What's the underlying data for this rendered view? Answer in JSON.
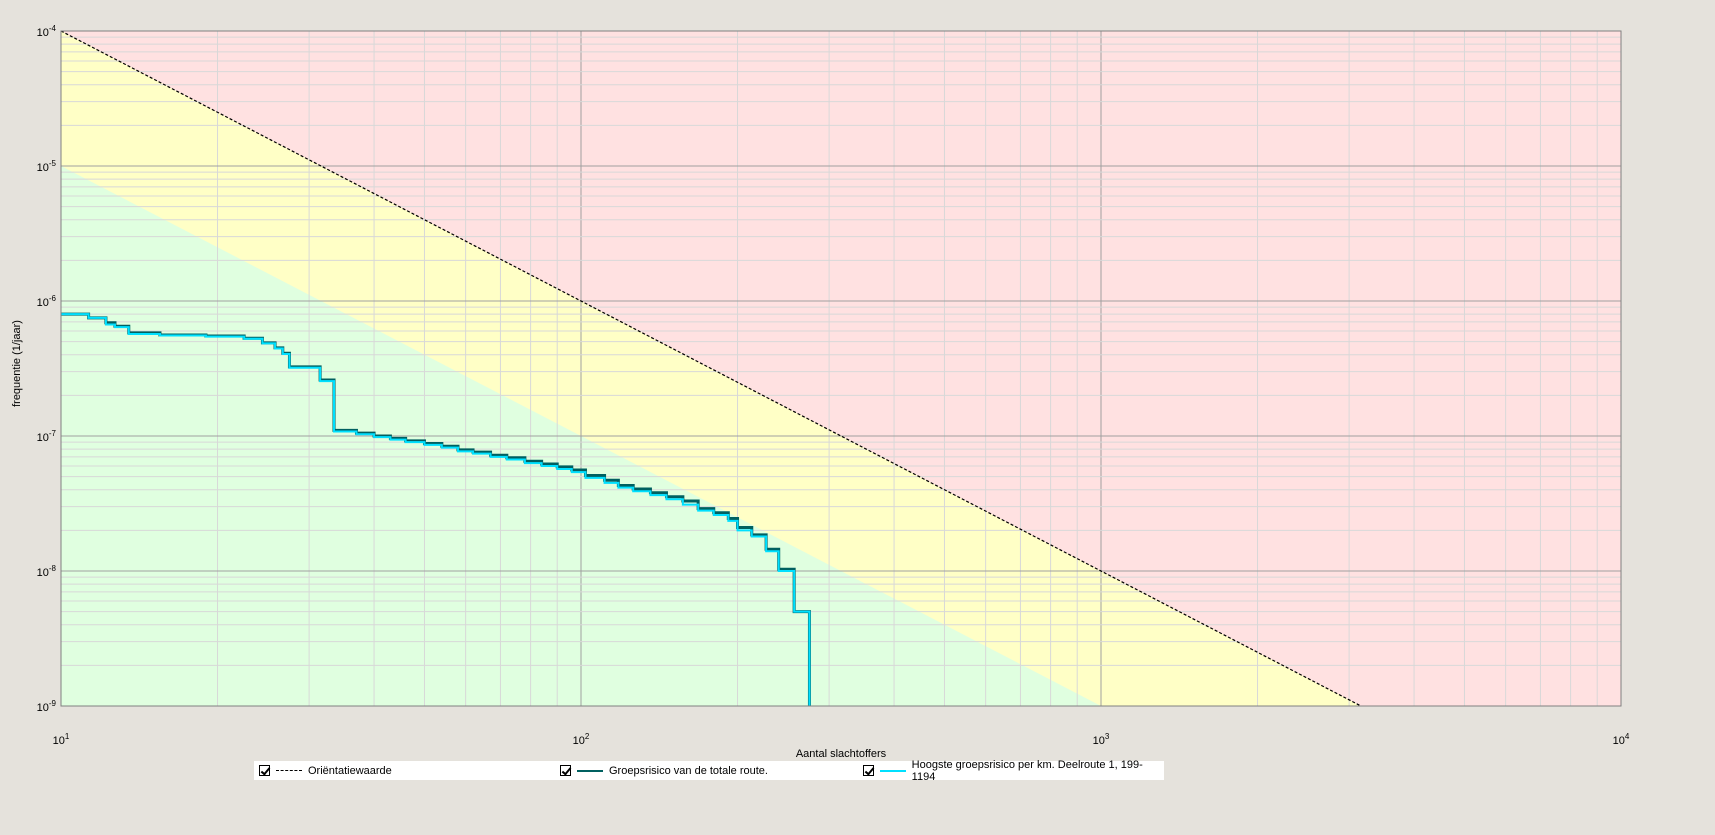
{
  "chart_data": {
    "type": "line",
    "xlabel": "Aantal slachtoffers",
    "ylabel": "frequentie (1/jaar)",
    "xscale": "log",
    "yscale": "log",
    "xlim": [
      10,
      10000
    ],
    "ylim": [
      1e-09,
      0.0001
    ],
    "grid": true,
    "x_ticks": [
      {
        "base": "10",
        "exp": "1",
        "value": 10
      },
      {
        "base": "10",
        "exp": "2",
        "value": 100
      },
      {
        "base": "10",
        "exp": "3",
        "value": 1000
      },
      {
        "base": "10",
        "exp": "4",
        "value": 10000
      }
    ],
    "y_ticks": [
      {
        "base": "10",
        "exp": "-4",
        "value": 0.0001
      },
      {
        "base": "10",
        "exp": "-5",
        "value": 1e-05
      },
      {
        "base": "10",
        "exp": "-6",
        "value": 1e-06
      },
      {
        "base": "10",
        "exp": "-7",
        "value": 1e-07
      },
      {
        "base": "10",
        "exp": "-8",
        "value": 1e-08
      },
      {
        "base": "10",
        "exp": "-9",
        "value": 1e-09
      }
    ],
    "regions": {
      "red": "#ffe1e1",
      "yellow": "#ffffc6",
      "green": "#e0ffe0",
      "yellow_lower_line": [
        [
          10,
          1e-05
        ],
        [
          1000,
          1e-09
        ]
      ],
      "orientatiewaarde_line": [
        [
          10,
          0.0001
        ],
        [
          3162,
          1e-09
        ]
      ]
    },
    "legend_position": "bottom",
    "series": [
      {
        "name": "Oriëntatiewaarde",
        "color": "#000000",
        "style": "dashed",
        "points": [
          [
            10,
            0.0001
          ],
          [
            3162,
            1e-09
          ]
        ]
      },
      {
        "name": "Groepsrisico van de totale route.",
        "color": "#006060",
        "style": "step",
        "points": [
          [
            10,
            8e-07
          ],
          [
            11.3,
            7.5e-07
          ],
          [
            12.2,
            6.9e-07
          ],
          [
            12.7,
            6.5e-07
          ],
          [
            13.5,
            5.8e-07
          ],
          [
            15.5,
            5.6e-07
          ],
          [
            19.0,
            5.5e-07
          ],
          [
            22.5,
            5.3e-07
          ],
          [
            24.4,
            4.9e-07
          ],
          [
            25.8,
            4.5e-07
          ],
          [
            26.7,
            4.1e-07
          ],
          [
            27.5,
            3.25e-07
          ],
          [
            31.5,
            2.6e-07
          ],
          [
            33.5,
            1.1e-07
          ],
          [
            37,
            1.05e-07
          ],
          [
            40,
            1e-07
          ],
          [
            43,
            9.6e-08
          ],
          [
            46,
            9.2e-08
          ],
          [
            50,
            8.8e-08
          ],
          [
            54,
            8.4e-08
          ],
          [
            58,
            7.9e-08
          ],
          [
            62,
            7.6e-08
          ],
          [
            67,
            7.2e-08
          ],
          [
            72,
            6.9e-08
          ],
          [
            78,
            6.5e-08
          ],
          [
            84,
            6.2e-08
          ],
          [
            90,
            5.9e-08
          ],
          [
            96,
            5.6e-08
          ],
          [
            102,
            5.1e-08
          ],
          [
            111,
            4.7e-08
          ],
          [
            118,
            4.3e-08
          ],
          [
            126,
            4.05e-08
          ],
          [
            136,
            3.8e-08
          ],
          [
            146,
            3.55e-08
          ],
          [
            157,
            3.3e-08
          ],
          [
            168,
            2.9e-08
          ],
          [
            180,
            2.7e-08
          ],
          [
            192,
            2.45e-08
          ],
          [
            200,
            2.1e-08
          ],
          [
            213,
            1.85e-08
          ],
          [
            227,
            1.45e-08
          ],
          [
            240,
            1.03e-08
          ],
          [
            257,
            5e-09
          ],
          [
            275,
            1e-09
          ]
        ]
      },
      {
        "name": "Hoogste groepsrisico per km. Deelroute 1, 199-1194",
        "color": "#00e0ff",
        "style": "step",
        "points": [
          [
            10,
            8e-07
          ],
          [
            11.3,
            7.5e-07
          ],
          [
            12.2,
            6.7e-07
          ],
          [
            12.7,
            6.4e-07
          ],
          [
            13.5,
            5.7e-07
          ],
          [
            15.5,
            5.55e-07
          ],
          [
            19.0,
            5.45e-07
          ],
          [
            22.5,
            5.25e-07
          ],
          [
            24.4,
            4.85e-07
          ],
          [
            25.8,
            4.45e-07
          ],
          [
            26.7,
            4.05e-07
          ],
          [
            27.5,
            3.2e-07
          ],
          [
            31.5,
            2.55e-07
          ],
          [
            33.5,
            1.08e-07
          ],
          [
            37,
            1.03e-07
          ],
          [
            40,
            9.8e-08
          ],
          [
            43,
            9.4e-08
          ],
          [
            46,
            9e-08
          ],
          [
            50,
            8.6e-08
          ],
          [
            54,
            8.2e-08
          ],
          [
            58,
            7.7e-08
          ],
          [
            62,
            7.4e-08
          ],
          [
            67,
            7e-08
          ],
          [
            72,
            6.7e-08
          ],
          [
            78,
            6.3e-08
          ],
          [
            84,
            6e-08
          ],
          [
            90,
            5.7e-08
          ],
          [
            96,
            5.4e-08
          ],
          [
            102,
            4.9e-08
          ],
          [
            111,
            4.5e-08
          ],
          [
            118,
            4.15e-08
          ],
          [
            126,
            3.9e-08
          ],
          [
            136,
            3.65e-08
          ],
          [
            146,
            3.4e-08
          ],
          [
            157,
            3.1e-08
          ],
          [
            168,
            2.8e-08
          ],
          [
            180,
            2.6e-08
          ],
          [
            192,
            2.35e-08
          ],
          [
            200,
            2e-08
          ],
          [
            213,
            1.8e-08
          ],
          [
            227,
            1.4e-08
          ],
          [
            240,
            1e-08
          ],
          [
            257,
            5e-09
          ],
          [
            275,
            1e-09
          ]
        ]
      }
    ]
  },
  "legend": {
    "items": [
      {
        "label": "Oriëntatiewaarde"
      },
      {
        "label": "Groepsrisico van de totale route."
      },
      {
        "label": "Hoogste groepsrisico per km. Deelroute 1, 199-1194"
      }
    ]
  }
}
